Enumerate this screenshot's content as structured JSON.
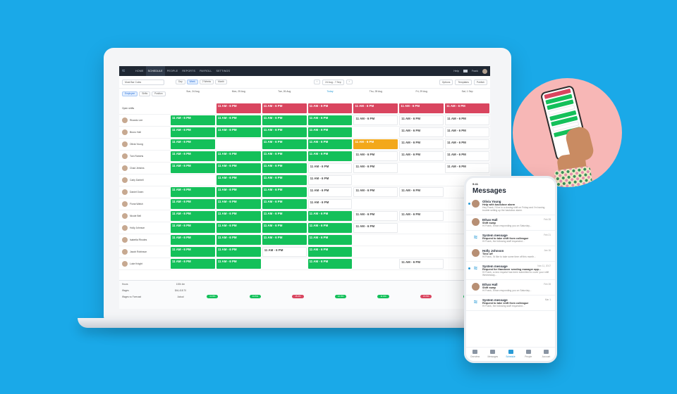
{
  "nav": {
    "items": [
      "HOME",
      "SCHEDULE",
      "PEOPLE",
      "REPORTS",
      "PAYROLL",
      "SETTINGS"
    ],
    "active_index": 1,
    "help": "Help",
    "user": "Frank"
  },
  "toolbar": {
    "location": "Most Bar Coles",
    "views": [
      "Day",
      "Week",
      "2 Weeks",
      "Month"
    ],
    "active_view": 1,
    "date_range": "24 Aug - 7 Sep",
    "options": "Options",
    "templates": "Templates",
    "publish": "Publish"
  },
  "side_tabs": [
    "Employee",
    "Shifts",
    "Position"
  ],
  "columns": [
    {
      "label": "Sun, 24 Aug",
      "today": false
    },
    {
      "label": "Mon, 25 Aug",
      "today": false
    },
    {
      "label": "Tue, 26 Aug",
      "today": false
    },
    {
      "label": "Today",
      "today": true
    },
    {
      "label": "Thu, 28 Aug",
      "today": false
    },
    {
      "label": "Fri, 29 Aug",
      "today": false
    },
    {
      "label": "Sat, 1 Sep",
      "today": false
    }
  ],
  "staff": [
    "Open shifts",
    "Ricardo Lee",
    "Bruno Hall",
    "Olivia Young",
    "Tom Roberts",
    "Chad Jenkins",
    "Carly Darbell",
    "Daniel Owen",
    "Fiona Walsh",
    "Nicole Bell",
    "Holly Johnson",
    "Isabella Rhodes",
    "Jacob Robinson",
    "Luke Knight"
  ],
  "shifts": [
    [
      "",
      "r",
      "r",
      "r",
      "r",
      "r",
      "r"
    ],
    [
      "g",
      "g",
      "g",
      "g",
      "w",
      "w",
      "w"
    ],
    [
      "g",
      "g",
      "g",
      "g",
      "",
      "w",
      "w"
    ],
    [
      "g",
      "",
      "g",
      "g",
      "y",
      "w",
      "w"
    ],
    [
      "g",
      "g",
      "g",
      "g",
      "w",
      "w",
      "w"
    ],
    [
      "g",
      "g",
      "g",
      "w",
      "w",
      "",
      "w"
    ],
    [
      "",
      "g",
      "g",
      "w",
      "",
      "",
      ""
    ],
    [
      "g",
      "g",
      "g",
      "w",
      "w",
      "w",
      ""
    ],
    [
      "g",
      "g",
      "g",
      "w",
      "",
      "",
      ""
    ],
    [
      "g",
      "g",
      "g",
      "g",
      "w",
      "w",
      ""
    ],
    [
      "g",
      "g",
      "g",
      "g",
      "w",
      "",
      ""
    ],
    [
      "g",
      "g",
      "g",
      "g",
      "",
      "",
      ""
    ],
    [
      "g",
      "g",
      "w",
      "g",
      "",
      "",
      ""
    ],
    [
      "g",
      "g",
      "",
      "g",
      "",
      "w",
      ""
    ]
  ],
  "shift_time": "11 AM - 6 PM",
  "footer": {
    "labels": [
      "Hours",
      "Wages",
      "Wages vs Forecast"
    ],
    "totals": [
      "100h 4m",
      "$44,418.70",
      "Actual"
    ],
    "pills": [
      {
        "text": "11.8%",
        "color": "#14c05a"
      },
      {
        "text": "13.5%",
        "color": "#14c05a"
      },
      {
        "text": "15.2%",
        "color": "#d9455f"
      },
      {
        "text": "12.0%",
        "color": "#14c05a"
      },
      {
        "text": "11.9%",
        "color": "#14c05a"
      },
      {
        "text": "15.5%",
        "color": "#d9455f"
      },
      {
        "text": "13.1%",
        "color": "#14c05a"
      }
    ]
  },
  "phone": {
    "time": "9:41",
    "title": "Messages",
    "messages": [
      {
        "name": "Olivia Young",
        "subject": "Help with backdoor alarm",
        "preview": "Hey Frank, I'll be in a closing shift on Friday and I'm having trouble setting up the backdoor alarm.",
        "date": "",
        "unread": true,
        "system": false
      },
      {
        "name": "Ethan Hall",
        "subject": "Shift swap",
        "preview": "Hi Frank, Ethan responding you on Saturday...",
        "date": "Feb 28",
        "unread": false,
        "system": false
      },
      {
        "name": "System message",
        "subject": "Request to take shift from colleague",
        "preview": "Hi Frank, the following staff requested...",
        "date": "Feb 21",
        "unread": false,
        "system": true
      },
      {
        "name": "Holly Johnson",
        "subject": "Time off",
        "preview": "Hi Frank, I'd like to take some time off this month...",
        "date": "Jan 16",
        "unread": false,
        "system": false
      },
      {
        "name": "System message",
        "subject": "Request for Handover sending manager app...",
        "preview": "Hi Frank, a new request has been submitted to cover your shift Wednesday...",
        "date": "Nov 11, 2017",
        "unread": true,
        "system": true
      },
      {
        "name": "Ethan Hall",
        "subject": "Shift swap",
        "preview": "Hi Frank, Ethan responding you on Saturday...",
        "date": "Feb 28",
        "unread": false,
        "system": false
      },
      {
        "name": "System message",
        "subject": "Request to take shift from colleague",
        "preview": "Hi Frank, the following staff requested...",
        "date": "Mar 1",
        "unread": false,
        "system": true
      }
    ],
    "tabs": [
      "Overview",
      "Messages",
      "Schedule",
      "People",
      "Account"
    ],
    "active_tab": 2
  }
}
